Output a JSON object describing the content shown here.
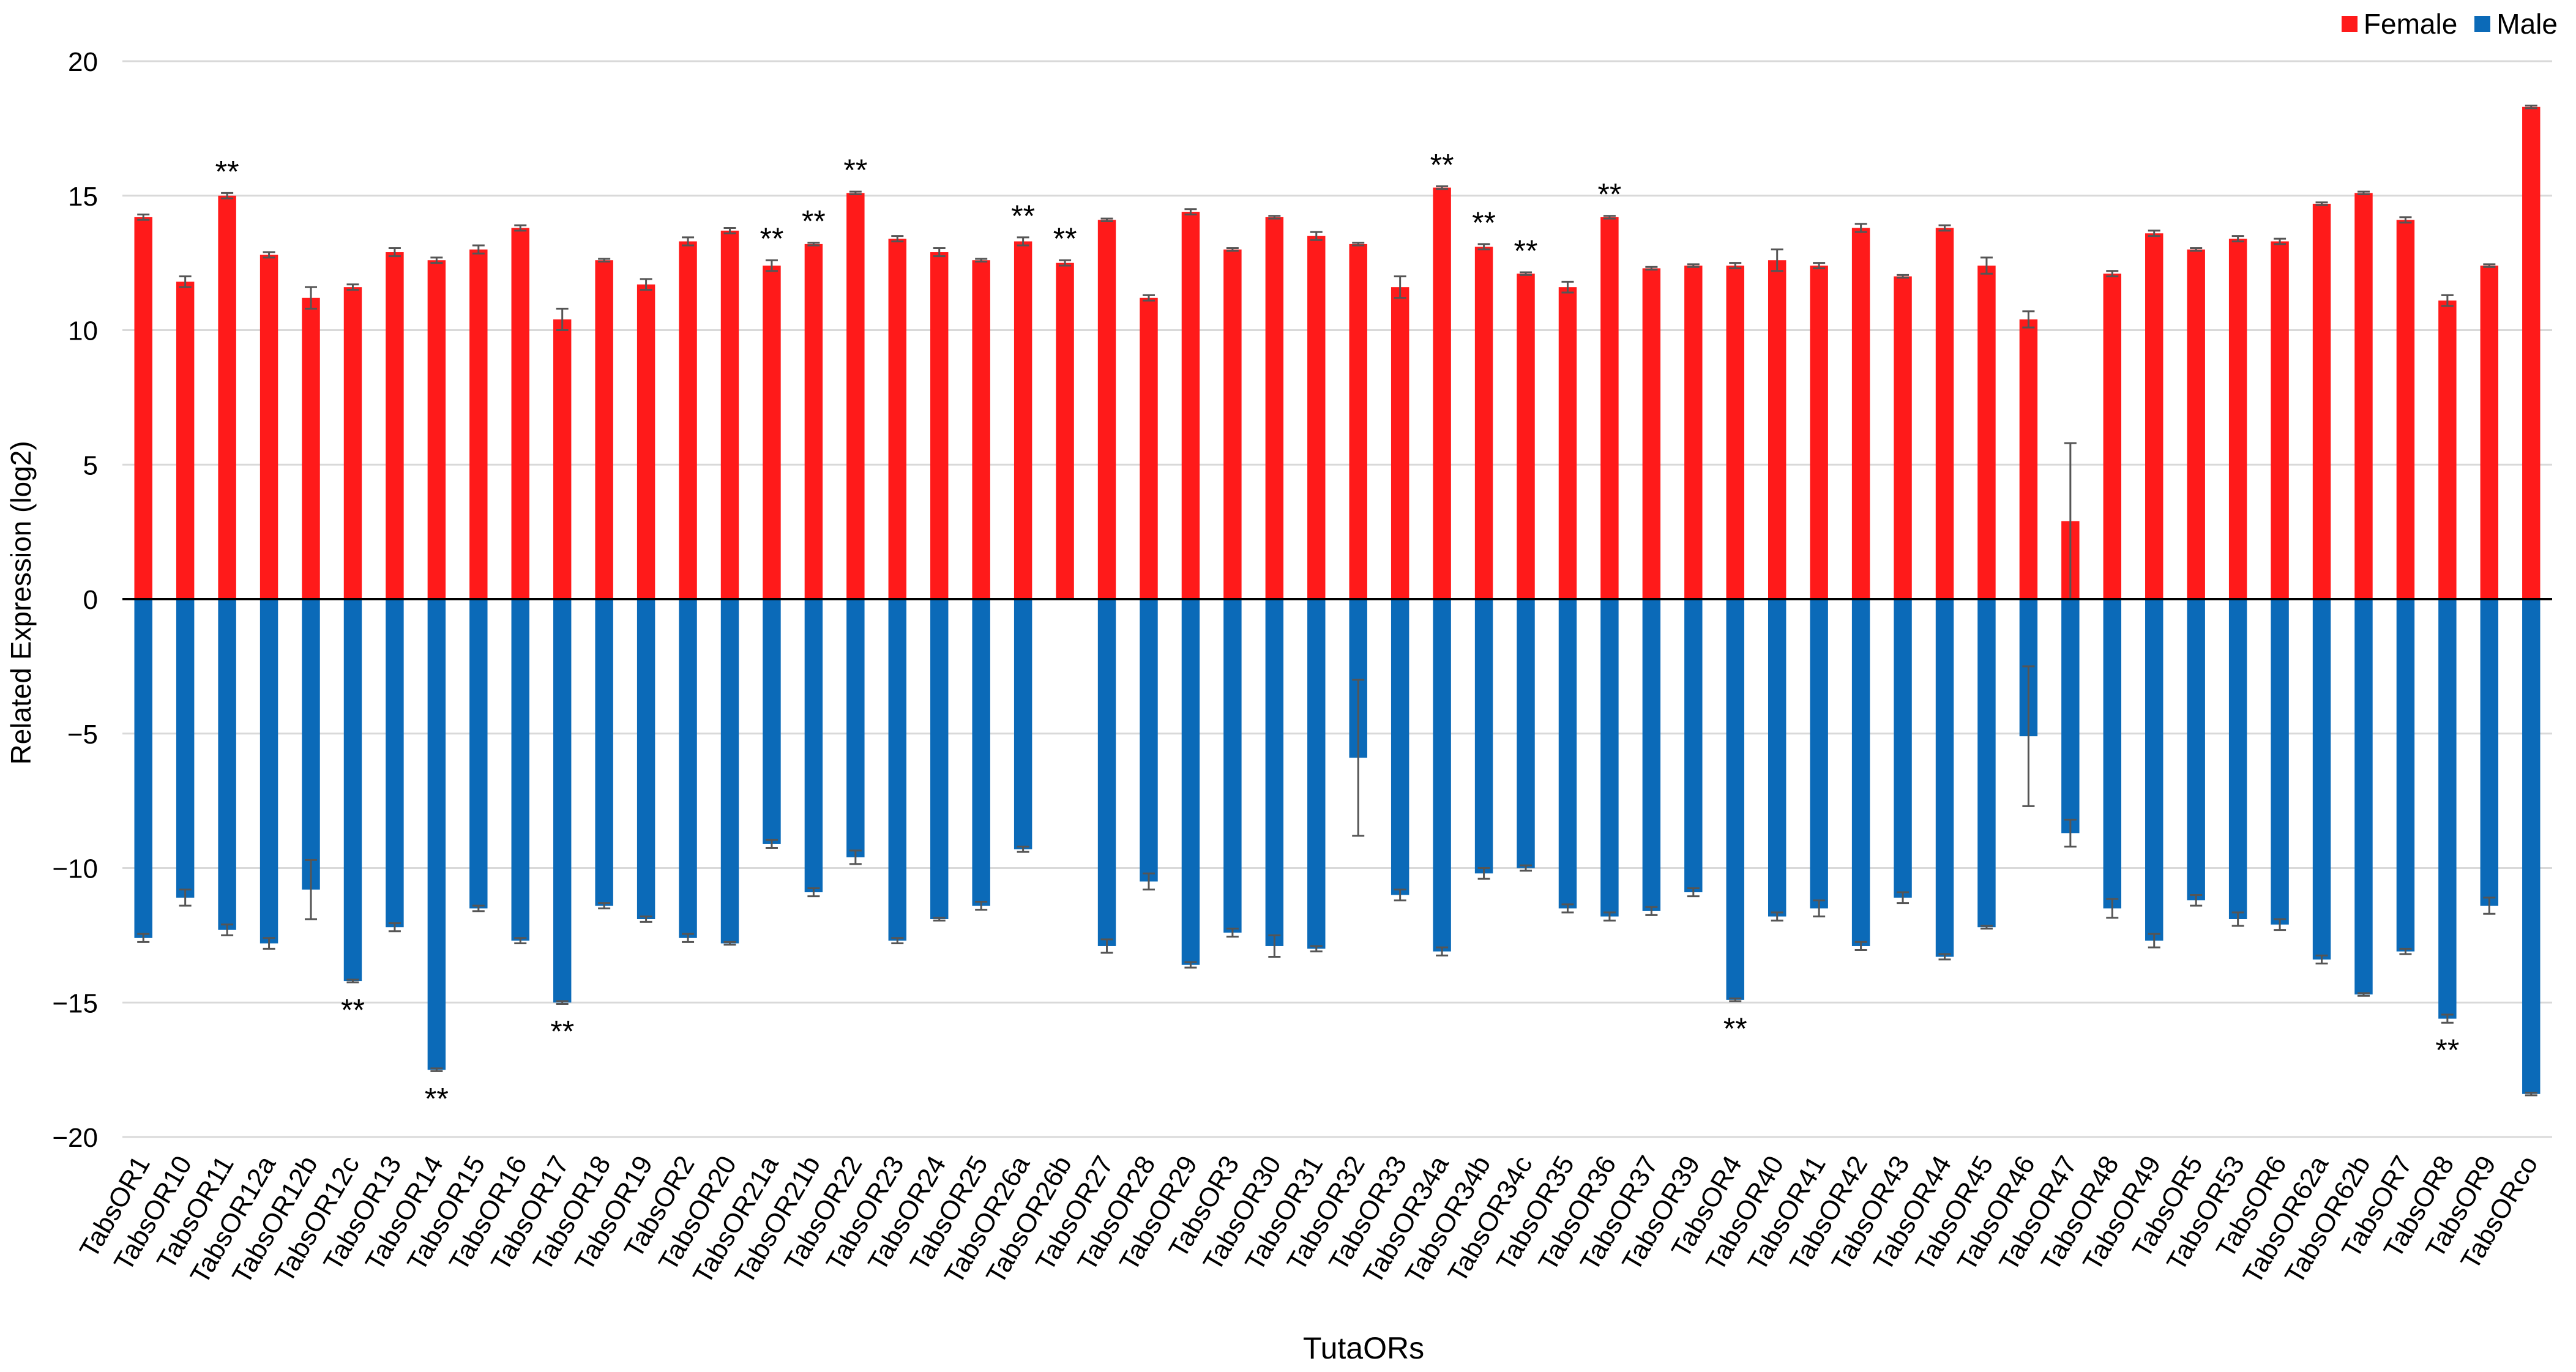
{
  "chart_data": {
    "type": "bar",
    "title": "",
    "xlabel": "TutaORs",
    "ylabel": "Related Expression (log2)",
    "ylim": [
      -20,
      20
    ],
    "yticks": [
      20,
      15,
      10,
      5,
      0,
      -5,
      -10,
      -15,
      -20
    ],
    "grid": true,
    "legend_position": "top-right",
    "categories": [
      "TabsOR1",
      "TabsOR10",
      "TabsOR11",
      "TabsOR12a",
      "TabsOR12b",
      "TabsOR12c",
      "TabsOR13",
      "TabsOR14",
      "TabsOR15",
      "TabsOR16",
      "TabsOR17",
      "TabsOR18",
      "TabsOR19",
      "TabsOR2",
      "TabsOR20",
      "TabsOR21a",
      "TabsOR21b",
      "TabsOR22",
      "TabsOR23",
      "TabsOR24",
      "TabsOR25",
      "TabsOR26a",
      "TabsOR26b",
      "TabsOR27",
      "TabsOR28",
      "TabsOR29",
      "TabsOR3",
      "TabsOR30",
      "TabsOR31",
      "TabsOR32",
      "TabsOR33",
      "TabsOR34a",
      "TabsOR34b",
      "TabsOR34c",
      "TabsOR35",
      "TabsOR36",
      "TabsOR37",
      "TabsOR39",
      "TabsOR4",
      "TabsOR40",
      "TabsOR41",
      "TabsOR42",
      "TabsOR43",
      "TabsOR44",
      "TabsOR45",
      "TabsOR46",
      "TabsOR47",
      "TabsOR48",
      "TabsOR49",
      "TabsOR5",
      "TabsOR53",
      "TabsOR6",
      "TabsOR62a",
      "TabsOR62b",
      "TabsOR7",
      "TabsOR8",
      "TabsOR9",
      "TabsORco"
    ],
    "series": [
      {
        "name": "Female",
        "color": "#ff1a1a",
        "values": [
          14.2,
          11.8,
          15.0,
          12.8,
          11.2,
          11.6,
          12.9,
          12.6,
          13.0,
          13.8,
          10.4,
          12.6,
          11.7,
          13.3,
          13.7,
          12.4,
          13.2,
          15.1,
          13.4,
          12.9,
          12.6,
          13.3,
          12.5,
          14.1,
          11.2,
          14.4,
          13.0,
          14.2,
          13.5,
          13.2,
          11.6,
          15.3,
          13.1,
          12.1,
          11.6,
          14.2,
          12.3,
          12.4,
          12.4,
          12.6,
          12.4,
          13.8,
          12.0,
          13.8,
          12.4,
          10.4,
          2.9,
          12.1,
          13.6,
          13.0,
          13.4,
          13.3,
          14.7,
          15.1,
          14.1,
          11.1,
          12.4,
          18.3
        ],
        "errors": [
          0.1,
          0.2,
          0.1,
          0.1,
          0.4,
          0.1,
          0.15,
          0.1,
          0.15,
          0.1,
          0.4,
          0.05,
          0.2,
          0.15,
          0.1,
          0.2,
          0.05,
          0.05,
          0.1,
          0.15,
          0.05,
          0.15,
          0.1,
          0.05,
          0.1,
          0.1,
          0.05,
          0.05,
          0.15,
          0.05,
          0.4,
          0.05,
          0.1,
          0.05,
          0.2,
          0.05,
          0.05,
          0.05,
          0.1,
          0.4,
          0.1,
          0.15,
          0.05,
          0.1,
          0.3,
          0.3,
          2.9,
          0.1,
          0.1,
          0.05,
          0.1,
          0.1,
          0.05,
          0.05,
          0.1,
          0.2,
          0.05,
          0.05
        ]
      },
      {
        "name": "Male",
        "color": "#0b6ab8",
        "values": [
          -12.6,
          -11.1,
          -12.3,
          -12.8,
          -10.8,
          -14.2,
          -12.2,
          -17.5,
          -11.5,
          -12.7,
          -15.0,
          -11.4,
          -11.9,
          -12.6,
          -12.8,
          -9.1,
          -10.9,
          -9.6,
          -12.7,
          -11.9,
          -11.4,
          -9.3,
          0.0,
          -12.9,
          -10.5,
          -13.6,
          -12.4,
          -12.9,
          -13.0,
          -5.9,
          -11.0,
          -13.1,
          -10.2,
          -10.0,
          -11.5,
          -11.8,
          -11.6,
          -10.9,
          -14.9,
          -11.8,
          -11.5,
          -12.9,
          -11.1,
          -13.3,
          -12.2,
          -5.1,
          -8.7,
          -11.5,
          -12.7,
          -11.2,
          -11.9,
          -12.1,
          -13.4,
          -14.7,
          -13.1,
          -15.6,
          -11.4,
          -18.4
        ],
        "errors": [
          0.15,
          0.3,
          0.2,
          0.2,
          1.1,
          0.05,
          0.15,
          0.05,
          0.1,
          0.1,
          0.05,
          0.1,
          0.1,
          0.15,
          0.05,
          0.15,
          0.15,
          0.25,
          0.1,
          0.05,
          0.15,
          0.1,
          0.0,
          0.25,
          0.3,
          0.1,
          0.15,
          0.4,
          0.1,
          2.9,
          0.2,
          0.15,
          0.2,
          0.1,
          0.15,
          0.15,
          0.15,
          0.15,
          0.05,
          0.15,
          0.3,
          0.15,
          0.2,
          0.1,
          0.05,
          2.6,
          0.5,
          0.35,
          0.25,
          0.2,
          0.25,
          0.2,
          0.15,
          0.05,
          0.1,
          0.15,
          0.3,
          0.05
        ]
      }
    ],
    "annotations": {
      "female": [
        {
          "category": "TabsOR11",
          "text": "**"
        },
        {
          "category": "TabsOR21a",
          "text": "**"
        },
        {
          "category": "TabsOR21b",
          "text": "**"
        },
        {
          "category": "TabsOR22",
          "text": "**"
        },
        {
          "category": "TabsOR26a",
          "text": "**"
        },
        {
          "category": "TabsOR26b",
          "text": "**"
        },
        {
          "category": "TabsOR34a",
          "text": "**"
        },
        {
          "category": "TabsOR34b",
          "text": "**"
        },
        {
          "category": "TabsOR34c",
          "text": "**"
        },
        {
          "category": "TabsOR36",
          "text": "**"
        }
      ],
      "male": [
        {
          "category": "TabsOR12c",
          "text": "**"
        },
        {
          "category": "TabsOR14",
          "text": "**"
        },
        {
          "category": "TabsOR17",
          "text": "**"
        },
        {
          "category": "TabsOR4",
          "text": "**"
        },
        {
          "category": "TabsOR8",
          "text": "**"
        }
      ]
    }
  }
}
